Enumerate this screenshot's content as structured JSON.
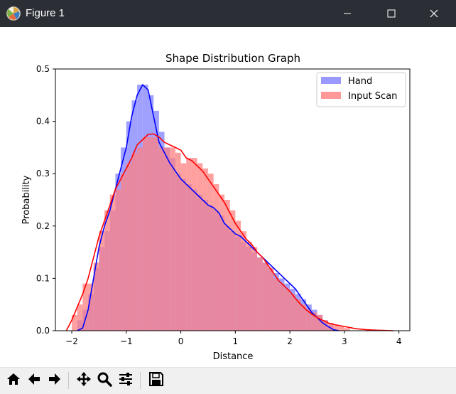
{
  "window": {
    "title": "Figure 1",
    "icon": "matplotlib-figure-icon",
    "controls": [
      "minimize-icon",
      "maximize-icon",
      "close-icon"
    ],
    "titlebar_color": "#2b2f35"
  },
  "toolbar": {
    "buttons": [
      "home-icon",
      "back-arrow-icon",
      "forward-arrow-icon",
      "pan-move-icon",
      "zoom-magnifier-icon",
      "configure-subplots-icon",
      "save-figure-icon"
    ]
  },
  "chart_data": {
    "type": "area",
    "title": "Shape Distribution Graph",
    "xlabel": "Distance",
    "ylabel": "Probability",
    "xlim": [
      -2.3,
      4.2
    ],
    "ylim": [
      0,
      0.5
    ],
    "xticks": [
      -2,
      -1,
      0,
      1,
      2,
      3,
      4
    ],
    "xtick_labels": [
      "−2",
      "−1",
      "0",
      "1",
      "2",
      "3",
      "4"
    ],
    "yticks": [
      0,
      0.1,
      0.2,
      0.3,
      0.4,
      0.5
    ],
    "ytick_labels": [
      "0.0",
      "0.1",
      "0.2",
      "0.3",
      "0.4",
      "0.5"
    ],
    "grid": false,
    "legend": "top-right",
    "series": [
      {
        "name": "Hand",
        "hist_color": "#8080ff",
        "kde_color": "#0000ff",
        "hist_bin_width": 0.1,
        "hist": [
          [
            -1.85,
            0.02
          ],
          [
            -1.75,
            0.04
          ],
          [
            -1.65,
            0.07
          ],
          [
            -1.55,
            0.12
          ],
          [
            -1.45,
            0.16
          ],
          [
            -1.35,
            0.19
          ],
          [
            -1.25,
            0.23
          ],
          [
            -1.15,
            0.3
          ],
          [
            -1.05,
            0.35
          ],
          [
            -0.95,
            0.4
          ],
          [
            -0.85,
            0.44
          ],
          [
            -0.75,
            0.47
          ],
          [
            -0.65,
            0.47
          ],
          [
            -0.55,
            0.45
          ],
          [
            -0.45,
            0.42
          ],
          [
            -0.35,
            0.38
          ],
          [
            -0.25,
            0.35
          ],
          [
            -0.15,
            0.33
          ],
          [
            -0.05,
            0.3
          ],
          [
            0.05,
            0.29
          ],
          [
            0.15,
            0.28
          ],
          [
            0.25,
            0.27
          ],
          [
            0.35,
            0.26
          ],
          [
            0.45,
            0.25
          ],
          [
            0.55,
            0.24
          ],
          [
            0.65,
            0.23
          ],
          [
            0.75,
            0.22
          ],
          [
            0.85,
            0.2
          ],
          [
            0.95,
            0.19
          ],
          [
            1.05,
            0.18
          ],
          [
            1.15,
            0.17
          ],
          [
            1.25,
            0.16
          ],
          [
            1.35,
            0.15
          ],
          [
            1.45,
            0.14
          ],
          [
            1.55,
            0.13
          ],
          [
            1.65,
            0.12
          ],
          [
            1.75,
            0.11
          ],
          [
            1.85,
            0.1
          ],
          [
            1.95,
            0.09
          ],
          [
            2.05,
            0.08
          ],
          [
            2.15,
            0.07
          ],
          [
            2.25,
            0.06
          ],
          [
            2.35,
            0.05
          ],
          [
            2.45,
            0.04
          ],
          [
            2.55,
            0.03
          ],
          [
            2.65,
            0.02
          ],
          [
            2.75,
            0.01
          ]
        ],
        "kde": [
          [
            -1.9,
            0.0
          ],
          [
            -1.8,
            0.005
          ],
          [
            -1.7,
            0.04
          ],
          [
            -1.6,
            0.1
          ],
          [
            -1.5,
            0.16
          ],
          [
            -1.4,
            0.2
          ],
          [
            -1.3,
            0.23
          ],
          [
            -1.2,
            0.27
          ],
          [
            -1.1,
            0.31
          ],
          [
            -1.0,
            0.35
          ],
          [
            -0.9,
            0.41
          ],
          [
            -0.8,
            0.45
          ],
          [
            -0.7,
            0.47
          ],
          [
            -0.6,
            0.46
          ],
          [
            -0.5,
            0.41
          ],
          [
            -0.4,
            0.36
          ],
          [
            -0.3,
            0.34
          ],
          [
            -0.2,
            0.32
          ],
          [
            -0.1,
            0.305
          ],
          [
            0.0,
            0.29
          ],
          [
            0.1,
            0.28
          ],
          [
            0.2,
            0.27
          ],
          [
            0.3,
            0.26
          ],
          [
            0.4,
            0.25
          ],
          [
            0.5,
            0.24
          ],
          [
            0.6,
            0.235
          ],
          [
            0.7,
            0.225
          ],
          [
            0.8,
            0.205
          ],
          [
            0.9,
            0.195
          ],
          [
            1.0,
            0.185
          ],
          [
            1.1,
            0.18
          ],
          [
            1.2,
            0.17
          ],
          [
            1.3,
            0.16
          ],
          [
            1.4,
            0.15
          ],
          [
            1.5,
            0.14
          ],
          [
            1.6,
            0.13
          ],
          [
            1.7,
            0.12
          ],
          [
            1.8,
            0.11
          ],
          [
            1.9,
            0.1
          ],
          [
            2.0,
            0.09
          ],
          [
            2.1,
            0.08
          ],
          [
            2.2,
            0.065
          ],
          [
            2.3,
            0.05
          ],
          [
            2.4,
            0.035
          ],
          [
            2.5,
            0.025
          ],
          [
            2.6,
            0.015
          ],
          [
            2.7,
            0.008
          ],
          [
            2.8,
            0.002
          ],
          [
            2.9,
            0.0
          ]
        ]
      },
      {
        "name": "Input Scan",
        "hist_color": "#ff8080",
        "kde_color": "#ff0000",
        "hist_bin_width": 0.1,
        "hist": [
          [
            -1.95,
            0.03
          ],
          [
            -1.85,
            0.05
          ],
          [
            -1.75,
            0.09
          ],
          [
            -1.65,
            0.09
          ],
          [
            -1.55,
            0.13
          ],
          [
            -1.45,
            0.19
          ],
          [
            -1.35,
            0.23
          ],
          [
            -1.25,
            0.26
          ],
          [
            -1.15,
            0.27
          ],
          [
            -1.05,
            0.3
          ],
          [
            -0.95,
            0.32
          ],
          [
            -0.85,
            0.34
          ],
          [
            -0.75,
            0.35
          ],
          [
            -0.65,
            0.37
          ],
          [
            -0.55,
            0.37
          ],
          [
            -0.45,
            0.37
          ],
          [
            -0.35,
            0.35
          ],
          [
            -0.25,
            0.35
          ],
          [
            -0.15,
            0.35
          ],
          [
            -0.05,
            0.34
          ],
          [
            0.05,
            0.32
          ],
          [
            0.15,
            0.33
          ],
          [
            0.25,
            0.33
          ],
          [
            0.35,
            0.32
          ],
          [
            0.45,
            0.31
          ],
          [
            0.55,
            0.3
          ],
          [
            0.65,
            0.28
          ],
          [
            0.75,
            0.26
          ],
          [
            0.85,
            0.25
          ],
          [
            0.95,
            0.23
          ],
          [
            1.05,
            0.21
          ],
          [
            1.15,
            0.19
          ],
          [
            1.25,
            0.17
          ],
          [
            1.35,
            0.16
          ],
          [
            1.45,
            0.14
          ],
          [
            1.55,
            0.13
          ],
          [
            1.65,
            0.12
          ],
          [
            1.75,
            0.1
          ],
          [
            1.85,
            0.09
          ],
          [
            1.95,
            0.08
          ],
          [
            2.05,
            0.07
          ],
          [
            2.15,
            0.06
          ],
          [
            2.25,
            0.05
          ],
          [
            2.35,
            0.04
          ],
          [
            2.45,
            0.035
          ],
          [
            2.55,
            0.03
          ],
          [
            2.65,
            0.02
          ],
          [
            2.75,
            0.015
          ],
          [
            2.85,
            0.01
          ],
          [
            2.95,
            0.008
          ],
          [
            3.05,
            0.005
          ]
        ],
        "kde": [
          [
            -2.1,
            0.0
          ],
          [
            -2.0,
            0.02
          ],
          [
            -1.9,
            0.045
          ],
          [
            -1.8,
            0.07
          ],
          [
            -1.7,
            0.1
          ],
          [
            -1.6,
            0.14
          ],
          [
            -1.5,
            0.18
          ],
          [
            -1.4,
            0.21
          ],
          [
            -1.3,
            0.24
          ],
          [
            -1.2,
            0.27
          ],
          [
            -1.1,
            0.29
          ],
          [
            -1.0,
            0.31
          ],
          [
            -0.9,
            0.33
          ],
          [
            -0.8,
            0.355
          ],
          [
            -0.7,
            0.365
          ],
          [
            -0.6,
            0.375
          ],
          [
            -0.5,
            0.376
          ],
          [
            -0.4,
            0.37
          ],
          [
            -0.3,
            0.36
          ],
          [
            -0.2,
            0.355
          ],
          [
            -0.1,
            0.35
          ],
          [
            0.0,
            0.345
          ],
          [
            0.1,
            0.33
          ],
          [
            0.2,
            0.325
          ],
          [
            0.3,
            0.315
          ],
          [
            0.4,
            0.305
          ],
          [
            0.5,
            0.29
          ],
          [
            0.6,
            0.275
          ],
          [
            0.7,
            0.26
          ],
          [
            0.8,
            0.245
          ],
          [
            0.9,
            0.225
          ],
          [
            1.0,
            0.205
          ],
          [
            1.1,
            0.19
          ],
          [
            1.2,
            0.175
          ],
          [
            1.3,
            0.165
          ],
          [
            1.4,
            0.15
          ],
          [
            1.5,
            0.14
          ],
          [
            1.6,
            0.125
          ],
          [
            1.7,
            0.11
          ],
          [
            1.8,
            0.095
          ],
          [
            1.9,
            0.085
          ],
          [
            2.0,
            0.075
          ],
          [
            2.1,
            0.062
          ],
          [
            2.2,
            0.05
          ],
          [
            2.3,
            0.04
          ],
          [
            2.4,
            0.032
          ],
          [
            2.5,
            0.025
          ],
          [
            2.6,
            0.02
          ],
          [
            2.7,
            0.015
          ],
          [
            2.8,
            0.012
          ],
          [
            2.9,
            0.01
          ],
          [
            3.0,
            0.008
          ],
          [
            3.1,
            0.006
          ],
          [
            3.2,
            0.004
          ],
          [
            3.4,
            0.002
          ],
          [
            3.6,
            0.001
          ],
          [
            3.9,
            0.0
          ]
        ]
      }
    ]
  }
}
